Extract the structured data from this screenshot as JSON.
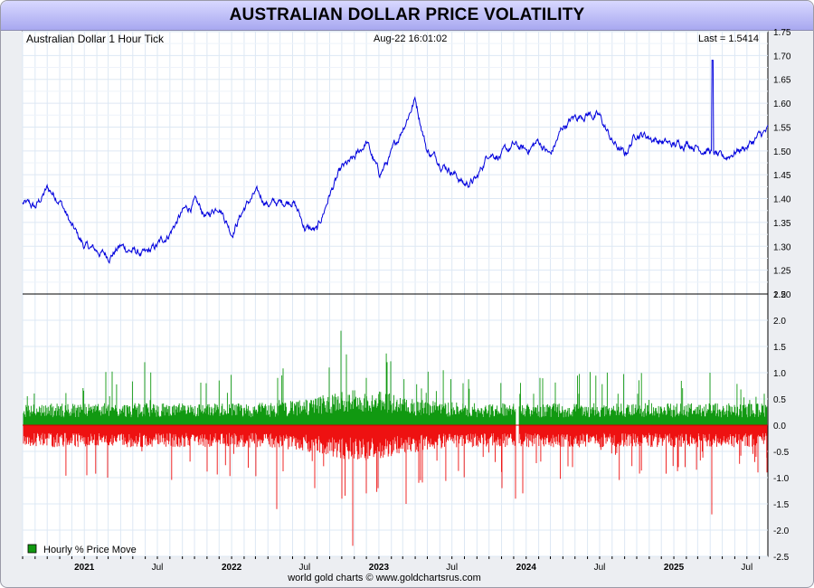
{
  "header": {
    "title": "AUSTRALIAN DOLLAR PRICE VOLATILITY",
    "series_label": "Australian Dollar 1 Hour Tick",
    "timestamp": "Aug-22  16:01:02",
    "last_label": "Last = 1.5414"
  },
  "footer": {
    "source": "world gold charts © www.goldchartsrus.com"
  },
  "colors": {
    "price_line": "#0000dd",
    "positive_bars": "#119911",
    "negative_bars": "#ee1111",
    "grid": "#dde8f4",
    "title_bg": "#b8b8f8"
  },
  "chart_data": [
    {
      "type": "line",
      "title": "Australian Dollar 1 Hour Tick",
      "series": [
        {
          "values_note": "",
          "x": [
            "2020-08",
            "2020-09",
            "2020-10",
            "2020-11",
            "2020-12",
            "2021-01",
            "2021-02",
            "2021-03",
            "2021-04",
            "2021-05",
            "2021-06",
            "2021-07",
            "2021-08",
            "2021-09",
            "2021-10",
            "2021-11",
            "2021-12",
            "2022-01",
            "2022-02",
            "2022-03",
            "2022-04",
            "2022-05",
            "2022-06",
            "2022-07",
            "2022-08",
            "2022-09",
            "2022-10",
            "2022-11",
            "2022-12",
            "2023-01",
            "2023-02",
            "2023-03",
            "2023-04",
            "2023-05",
            "2023-06",
            "2023-07",
            "2023-08",
            "2023-09",
            "2023-10",
            "2023-11",
            "2023-12",
            "2024-01",
            "2024-02",
            "2024-03",
            "2024-04",
            "2024-05",
            "2024-06",
            "2024-07",
            "2024-08",
            "2024-09",
            "2024-10",
            "2024-11",
            "2024-12",
            "2025-01",
            "2025-02",
            "2025-03",
            "2025-04",
            "2025-05",
            "2025-06",
            "2025-07",
            "2025-08"
          ],
          "y": [
            1.39,
            1.38,
            1.42,
            1.4,
            1.34,
            1.3,
            1.29,
            1.28,
            1.3,
            1.29,
            1.28,
            1.3,
            1.33,
            1.37,
            1.39,
            1.36,
            1.39,
            1.33,
            1.38,
            1.41,
            1.39,
            1.39,
            1.4,
            1.34,
            1.33,
            1.41,
            1.46,
            1.48,
            1.52,
            1.45,
            1.49,
            1.55,
            1.61,
            1.5,
            1.48,
            1.46,
            1.43,
            1.44,
            1.5,
            1.49,
            1.51,
            1.5,
            1.52,
            1.49,
            1.55,
            1.57,
            1.58,
            1.57,
            1.52,
            1.49,
            1.54,
            1.53,
            1.52,
            1.51,
            1.52,
            1.51,
            1.5,
            1.48,
            1.5,
            1.51,
            1.53
          ]
        }
      ],
      "ylim": [
        1.2,
        1.75
      ],
      "yticks": [
        "1.20",
        "1.25",
        "1.30",
        "1.35",
        "1.40",
        "1.45",
        "1.50",
        "1.55",
        "1.60",
        "1.65",
        "1.70",
        "1.75"
      ]
    },
    {
      "type": "bar",
      "title": "",
      "legend": [
        "Hourly % Price Move"
      ],
      "ylim": [
        -2.5,
        2.5
      ],
      "yticks": [
        "2.5",
        "2.0",
        "1.5",
        "1.0",
        "0.5",
        "0.0",
        "-0.5",
        "-1.0",
        "-1.5",
        "-2.0",
        "-2.5"
      ],
      "notable_values": {
        "max_positive": 1.8,
        "max_negative": -2.3,
        "typical_positive_envelope": 0.3,
        "typical_negative_envelope": -0.3
      }
    }
  ],
  "xaxis": {
    "labels": [
      "2021",
      "Jul",
      "2022",
      "Jul",
      "2023",
      "Jul",
      "2024",
      "Jul",
      "2025",
      "Jul"
    ]
  }
}
